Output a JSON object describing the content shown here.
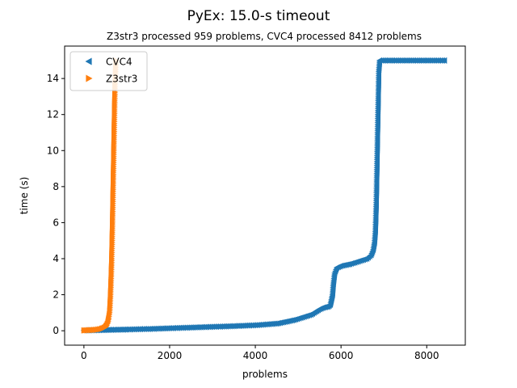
{
  "chart_data": {
    "type": "scatter",
    "title": "PyEx: 15.0-s timeout",
    "subtitle": "Z3str3 processed 959 problems, CVC4 processed 8412 problems",
    "xlabel": "problems",
    "ylabel": "time (s)",
    "xlim": [
      -450,
      8900
    ],
    "ylim": [
      -0.8,
      15.8
    ],
    "xticks": [
      0,
      2000,
      4000,
      6000,
      8000
    ],
    "yticks": [
      0,
      2,
      4,
      6,
      8,
      10,
      12,
      14
    ],
    "grid": false,
    "legend": {
      "placement": "top-left"
    },
    "series": [
      {
        "name": "CVC4",
        "color": "#1f77b4",
        "marker": "triangle-left",
        "points": [
          [
            0,
            0.02
          ],
          [
            200,
            0.03
          ],
          [
            400,
            0.04
          ],
          [
            600,
            0.05
          ],
          [
            800,
            0.06
          ],
          [
            1000,
            0.07
          ],
          [
            1500,
            0.1
          ],
          [
            2000,
            0.14
          ],
          [
            2500,
            0.18
          ],
          [
            3000,
            0.22
          ],
          [
            3500,
            0.26
          ],
          [
            4000,
            0.31
          ],
          [
            4500,
            0.4
          ],
          [
            4700,
            0.5
          ],
          [
            4900,
            0.6
          ],
          [
            5100,
            0.75
          ],
          [
            5300,
            0.9
          ],
          [
            5400,
            1.05
          ],
          [
            5500,
            1.2
          ],
          [
            5600,
            1.3
          ],
          [
            5700,
            1.35
          ],
          [
            5750,
            1.45
          ],
          [
            5800,
            2.0
          ],
          [
            5820,
            2.6
          ],
          [
            5850,
            3.2
          ],
          [
            5900,
            3.5
          ],
          [
            6000,
            3.6
          ],
          [
            6200,
            3.7
          ],
          [
            6400,
            3.85
          ],
          [
            6600,
            4.0
          ],
          [
            6700,
            4.2
          ],
          [
            6750,
            4.5
          ],
          [
            6780,
            4.9
          ],
          [
            6800,
            5.5
          ],
          [
            6810,
            6.2
          ],
          [
            6820,
            7.0
          ],
          [
            6830,
            8.2
          ],
          [
            6840,
            9.5
          ],
          [
            6850,
            10.8
          ],
          [
            6860,
            12.0
          ],
          [
            6870,
            13.2
          ],
          [
            6880,
            14.4
          ],
          [
            6900,
            15.0
          ],
          [
            7200,
            15.0
          ],
          [
            7600,
            15.0
          ],
          [
            8000,
            15.0
          ],
          [
            8412,
            15.0
          ]
        ]
      },
      {
        "name": "Z3str3",
        "color": "#ff7f0e",
        "marker": "triangle-right",
        "points": [
          [
            0,
            0.02
          ],
          [
            100,
            0.03
          ],
          [
            200,
            0.04
          ],
          [
            300,
            0.06
          ],
          [
            400,
            0.1
          ],
          [
            450,
            0.14
          ],
          [
            500,
            0.2
          ],
          [
            530,
            0.3
          ],
          [
            560,
            0.45
          ],
          [
            580,
            0.7
          ],
          [
            600,
            1.0
          ],
          [
            610,
            1.4
          ],
          [
            620,
            1.9
          ],
          [
            630,
            2.5
          ],
          [
            640,
            3.2
          ],
          [
            650,
            4.0
          ],
          [
            660,
            5.0
          ],
          [
            670,
            6.2
          ],
          [
            680,
            7.5
          ],
          [
            690,
            8.8
          ],
          [
            700,
            10.2
          ],
          [
            710,
            11.5
          ],
          [
            720,
            12.8
          ],
          [
            730,
            13.8
          ],
          [
            740,
            14.5
          ],
          [
            750,
            15.0
          ]
        ]
      }
    ]
  }
}
